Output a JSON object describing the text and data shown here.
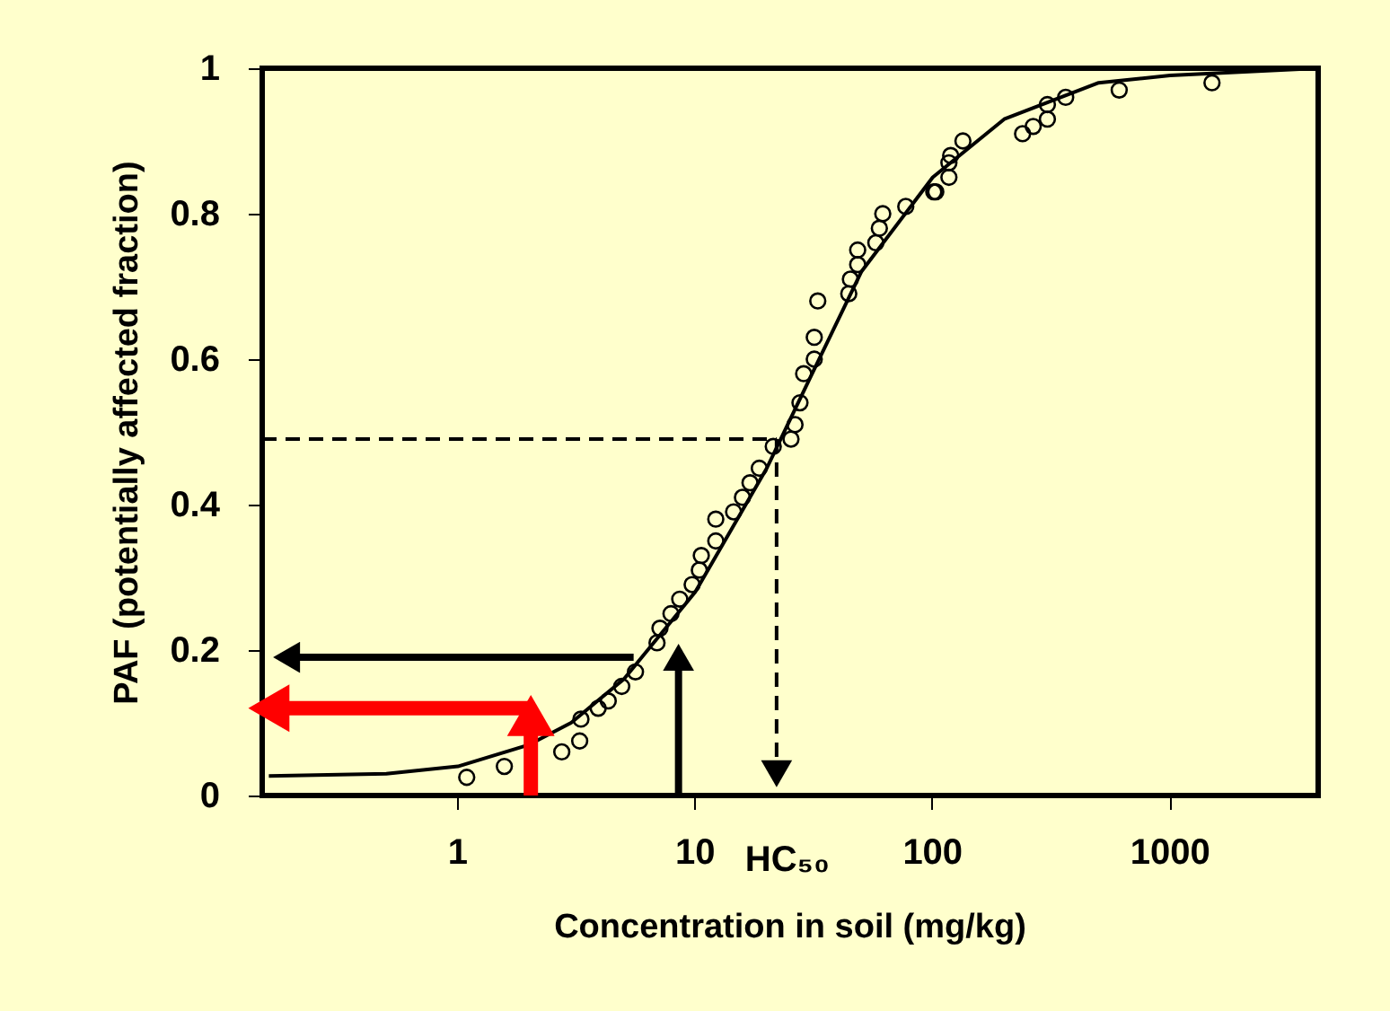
{
  "chart_data": {
    "type": "scatter",
    "xlabel": "Concentration  in soil (mg/kg)",
    "ylabel": "PAF (potentially affected fraction)",
    "log": "x",
    "xlim": [
      0.15,
      4200
    ],
    "xticks": [
      1,
      10,
      100,
      1000
    ],
    "ylim": [
      0,
      1
    ],
    "yticks": [
      0,
      0.2,
      0.4,
      0.6,
      0.8,
      1
    ],
    "grid": false,
    "annotations": [
      {
        "text": "HC₅₀",
        "x": 22,
        "y": 0
      }
    ],
    "series": [
      {
        "marker": "circle",
        "color": "#000000",
        "x": [
          1.09,
          1.57,
          2.74,
          3.26,
          3.3,
          3.9,
          4.3,
          4.9,
          5.6,
          6.9,
          7.1,
          7.9,
          8.6,
          9.7,
          10.4,
          10.6,
          12.2,
          12.2,
          14.5,
          15.8,
          17,
          18.6,
          21.3,
          25.3,
          26.3,
          27.6,
          28.6,
          31.7,
          31.7,
          32.8,
          44.3,
          45,
          48.3,
          48.3,
          57.6,
          59.6,
          61.6,
          77,
          101,
          103,
          117,
          117,
          119,
          134,
          239,
          265,
          304,
          304,
          363,
          610,
          1500
        ],
        "values": [
          0.025,
          0.04,
          0.06,
          0.075,
          0.105,
          0.12,
          0.13,
          0.15,
          0.17,
          0.21,
          0.23,
          0.25,
          0.27,
          0.29,
          0.31,
          0.33,
          0.35,
          0.38,
          0.39,
          0.41,
          0.43,
          0.45,
          0.48,
          0.49,
          0.51,
          0.54,
          0.58,
          0.6,
          0.63,
          0.68,
          0.69,
          0.71,
          0.73,
          0.75,
          0.76,
          0.78,
          0.8,
          0.81,
          0.83,
          0.83,
          0.85,
          0.87,
          0.88,
          0.9,
          0.91,
          0.92,
          0.93,
          0.95,
          0.96,
          0.97,
          0.98
        ]
      },
      {
        "type": "line",
        "marker": "none",
        "color": "#000000",
        "x": [
          0.16,
          0.5,
          1,
          2,
          3,
          5,
          10,
          20,
          30,
          50,
          100,
          200,
          500,
          1000,
          4200
        ],
        "values": [
          0.027,
          0.03,
          0.04,
          0.07,
          0.1,
          0.16,
          0.28,
          0.45,
          0.57,
          0.72,
          0.85,
          0.93,
          0.98,
          0.99,
          1
        ]
      },
      {
        "type": "line",
        "marker": "none",
        "line_style": "dashed",
        "color": "#000000",
        "x": [
          0.15,
          22
        ],
        "values": [
          0.49,
          0.49
        ]
      },
      {
        "type": "line",
        "marker": "triangle",
        "line_style": "dashed",
        "color": "#000000",
        "x": [
          22,
          22
        ],
        "values": [
          0.49,
          0.03
        ]
      },
      {
        "type": "line",
        "marker": "triangle",
        "color": "#000000",
        "x": [
          8.5,
          8.5
        ],
        "values": [
          0,
          0.19
        ]
      },
      {
        "type": "line",
        "marker": "triangle",
        "color": "#000000",
        "x": [
          5.5,
          0.19
        ],
        "values": [
          0.19,
          0.19
        ]
      },
      {
        "type": "line",
        "marker": "triangle",
        "color": "#ff0000",
        "x": [
          2.03,
          2.03
        ],
        "values": [
          0,
          0.11
        ]
      },
      {
        "type": "line",
        "marker": "triangle",
        "color": "#ff0000",
        "x": [
          2.03,
          0.16
        ],
        "values": [
          0.12,
          0.12
        ]
      }
    ]
  }
}
